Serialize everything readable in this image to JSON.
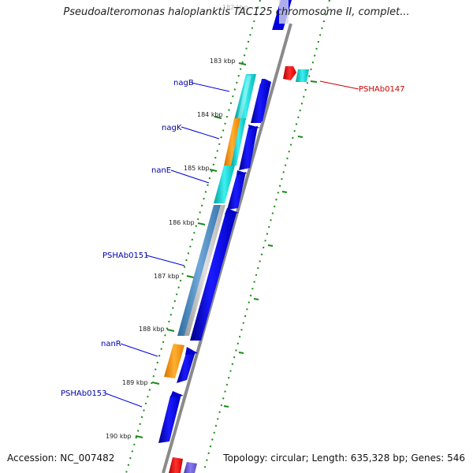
{
  "title": "Pseudoalteromonas haloplanktis TAC125 chromosome II, complet...",
  "footer": {
    "accession": "Accession: NC_007482",
    "topology": "Topology: circular; Length: 635,328 bp; Genes: 546"
  },
  "ticks": {
    "faded": "182 kbp",
    "t183": "183 kbp",
    "t184": "184 kbp",
    "t185": "185 kbp",
    "t186": "186 kbp",
    "t187": "187 kbp",
    "t188": "188 kbp",
    "t189": "189 kbp",
    "t190": "190 kbp"
  },
  "genes": {
    "nagB": "nagB",
    "nagK": "nagK",
    "nanE": "nanE",
    "PSHAb0151": "PSHAb0151",
    "nanR": "nanR",
    "PSHAb0153": "PSHAb0153",
    "PSHAb0147": "PSHAb0147"
  },
  "colors": {
    "backbone": "#888888",
    "forward_cds": "#0000dd",
    "cyan_feature": "#00c8c8",
    "orange_feature": "#ff9900",
    "steelblue_feature": "#4682b4",
    "red_feature": "#ee0000",
    "label_blue": "#0000aa",
    "label_red": "#cc0000",
    "tick_green": "#1a8a1a"
  }
}
